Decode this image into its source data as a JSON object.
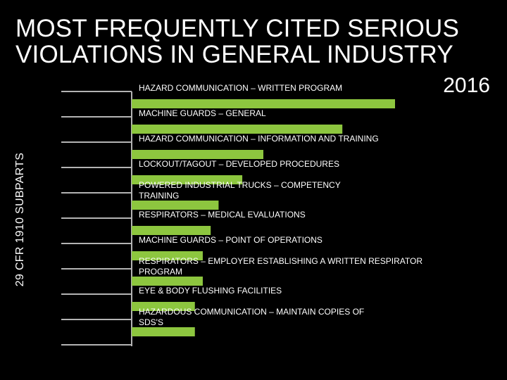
{
  "header": {
    "title_line1": "MOST FREQUENTLY CITED SERIOUS",
    "title_line2": "VIOLATIONS IN GENERAL INDUSTRY",
    "year": "2016"
  },
  "colors": {
    "background": "#000000",
    "bar": "#8dc63f",
    "text": "#ffffff",
    "axis": "#b3b3b3"
  },
  "chart_data": {
    "type": "bar",
    "orientation": "horizontal",
    "title": "MOST FREQUENTLY CITED SERIOUS VIOLATIONS IN GENERAL INDUSTRY 2016",
    "ylabel": "29 CFR 1910 SUBPARTS",
    "xlabel": "",
    "grid": false,
    "legend": "none",
    "xlim": [
      0,
      1
    ],
    "categories": [
      "HAZARD COMMUNICATION – WRITTEN PROGRAM",
      "MACHINE GUARDS – GENERAL",
      "HAZARD COMMUNICATION – INFORMATION AND TRAINING",
      "LOCKOUT/TAGOUT – DEVELOPED PROCEDURES",
      "POWERED INDUSTRIAL TRUCKS – COMPETENCY TRAINING",
      "RESPIRATORS – MEDICAL EVALUATIONS",
      "MACHINE GUARDS – POINT OF OPERATIONS",
      "RESPIRATORS – EMPLOYER ESTABLISHING A WRITTEN RESPIRATOR PROGRAM",
      "EYE & BODY FLUSHING FACILITIES",
      "HAZARDOUS COMMUNICATION – MAINTAIN COPIES OF SDS'S"
    ],
    "label_lines": [
      [
        "HAZARD COMMUNICATION – WRITTEN PROGRAM"
      ],
      [
        "MACHINE GUARDS – GENERAL"
      ],
      [
        "HAZARD COMMUNICATION – INFORMATION AND TRAINING"
      ],
      [
        "LOCKOUT/TAGOUT – DEVELOPED PROCEDURES"
      ],
      [
        "POWERED INDUSTRIAL TRUCKS – COMPETENCY",
        "TRAINING"
      ],
      [
        "RESPIRATORS – MEDICAL EVALUATIONS"
      ],
      [
        "MACHINE GUARDS – POINT OF OPERATIONS"
      ],
      [
        "RESPIRATORS – EMPLOYER ESTABLISHING A WRITTEN RESPIRATOR",
        "PROGRAM"
      ],
      [
        "EYE & BODY FLUSHING FACILITIES"
      ],
      [
        "HAZARDOUS COMMUNICATION – MAINTAIN COPIES OF",
        "SDS'S"
      ]
    ],
    "values": [
      1.0,
      0.8,
      0.5,
      0.42,
      0.33,
      0.3,
      0.27,
      0.27,
      0.24,
      0.24
    ]
  }
}
